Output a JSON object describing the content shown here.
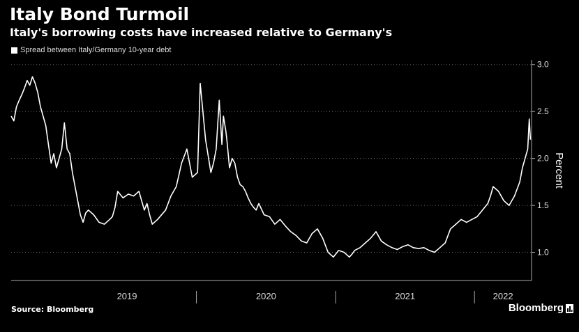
{
  "title": "Italy Bond Turmoil",
  "subtitle": "Italy's borrowing costs have increased relative to Germany's",
  "source": "Source: Bloomberg",
  "brand": "Bloomberg",
  "colors": {
    "background": "#000000",
    "line": "#ffffff",
    "grid": "#666666"
  },
  "chart_data": {
    "type": "line",
    "title": "Italy Bond Turmoil",
    "subtitle": "Italy's borrowing costs have increased relative to Germany's",
    "ylabel": "Percent",
    "xlabel": "",
    "ylim": [
      0.7,
      3.05
    ],
    "yticks": [
      1.0,
      1.5,
      2.0,
      2.5,
      3.0
    ],
    "ytick_labels": [
      "1.0",
      "1.5",
      "2.0",
      "2.5",
      "3.0"
    ],
    "xlim": [
      "2018-09-01",
      "2022-05-31"
    ],
    "xtick_labels": [
      "2019",
      "2020",
      "2021",
      "2022"
    ],
    "y_axis_position": "right",
    "grid": "horizontal dotted",
    "legend": "top-left",
    "series": [
      {
        "name": "Spread between Italy/Germany 10-year debt",
        "x": [
          "2018-09-01",
          "2018-09-08",
          "2018-09-15",
          "2018-09-22",
          "2018-09-29",
          "2018-10-06",
          "2018-10-13",
          "2018-10-20",
          "2018-10-27",
          "2018-11-03",
          "2018-11-10",
          "2018-11-17",
          "2018-11-24",
          "2018-12-01",
          "2018-12-08",
          "2018-12-15",
          "2018-12-22",
          "2018-12-29",
          "2019-01-05",
          "2019-01-12",
          "2019-01-19",
          "2019-01-26",
          "2019-02-02",
          "2019-02-09",
          "2019-02-16",
          "2019-02-23",
          "2019-03-02",
          "2019-03-09",
          "2019-03-16",
          "2019-03-23",
          "2019-04-06",
          "2019-04-20",
          "2019-05-04",
          "2019-05-18",
          "2019-05-25",
          "2019-06-01",
          "2019-06-08",
          "2019-06-22",
          "2019-07-06",
          "2019-07-20",
          "2019-08-03",
          "2019-08-10",
          "2019-08-17",
          "2019-08-24",
          "2019-08-31",
          "2019-09-07",
          "2019-09-21",
          "2019-10-12",
          "2019-10-26",
          "2019-11-09",
          "2019-11-23",
          "2019-12-07",
          "2019-12-21",
          "2020-01-04",
          "2020-01-11",
          "2020-01-25",
          "2020-02-08",
          "2020-02-15",
          "2020-02-22",
          "2020-03-01",
          "2020-03-08",
          "2020-03-12",
          "2020-03-18",
          "2020-03-21",
          "2020-03-28",
          "2020-04-04",
          "2020-04-11",
          "2020-04-18",
          "2020-04-25",
          "2020-05-02",
          "2020-05-09",
          "2020-05-16",
          "2020-05-23",
          "2020-05-30",
          "2020-06-06",
          "2020-06-13",
          "2020-06-27",
          "2020-07-11",
          "2020-07-25",
          "2020-08-08",
          "2020-08-22",
          "2020-09-05",
          "2020-09-19",
          "2020-10-03",
          "2020-10-17",
          "2020-10-31",
          "2020-11-14",
          "2020-11-28",
          "2020-12-12",
          "2020-12-26",
          "2021-01-09",
          "2021-01-23",
          "2021-02-06",
          "2021-02-13",
          "2021-02-20",
          "2021-03-06",
          "2021-03-20",
          "2021-04-03",
          "2021-04-17",
          "2021-05-01",
          "2021-05-15",
          "2021-05-29",
          "2021-06-12",
          "2021-06-26",
          "2021-07-10",
          "2021-07-24",
          "2021-08-07",
          "2021-08-21",
          "2021-09-04",
          "2021-09-18",
          "2021-10-02",
          "2021-10-16",
          "2021-10-30",
          "2021-11-13",
          "2021-11-27",
          "2021-12-11",
          "2021-12-25",
          "2022-01-08",
          "2022-01-22",
          "2022-02-05",
          "2022-02-12",
          "2022-02-19",
          "2022-03-05",
          "2022-03-19",
          "2022-04-02",
          "2022-04-16",
          "2022-04-30",
          "2022-05-07",
          "2022-05-14",
          "2022-05-21",
          "2022-05-25",
          "2022-05-28"
        ],
        "values": [
          2.45,
          2.4,
          2.55,
          2.62,
          2.68,
          2.75,
          2.83,
          2.78,
          2.87,
          2.8,
          2.7,
          2.55,
          2.45,
          2.35,
          2.15,
          1.95,
          2.05,
          1.9,
          2.0,
          2.1,
          2.38,
          2.1,
          2.05,
          1.85,
          1.7,
          1.55,
          1.4,
          1.32,
          1.42,
          1.45,
          1.4,
          1.32,
          1.3,
          1.35,
          1.38,
          1.48,
          1.65,
          1.58,
          1.62,
          1.6,
          1.65,
          1.55,
          1.45,
          1.52,
          1.4,
          1.3,
          1.35,
          1.45,
          1.6,
          1.7,
          1.95,
          2.1,
          1.8,
          1.85,
          2.8,
          2.2,
          1.85,
          1.95,
          2.1,
          2.62,
          2.15,
          2.45,
          2.3,
          2.2,
          1.9,
          2.0,
          1.95,
          1.8,
          1.72,
          1.7,
          1.65,
          1.58,
          1.52,
          1.48,
          1.45,
          1.52,
          1.4,
          1.38,
          1.3,
          1.35,
          1.28,
          1.22,
          1.18,
          1.12,
          1.1,
          1.2,
          1.25,
          1.15,
          1.0,
          0.95,
          1.02,
          1.0,
          0.95,
          0.98,
          1.02,
          1.05,
          1.1,
          1.15,
          1.22,
          1.12,
          1.08,
          1.05,
          1.03,
          1.06,
          1.08,
          1.05,
          1.04,
          1.05,
          1.02,
          1.0,
          1.05,
          1.1,
          1.25,
          1.3,
          1.35,
          1.32,
          1.35,
          1.38,
          1.45,
          1.52,
          1.6,
          1.7,
          1.65,
          1.55,
          1.5,
          1.6,
          1.75,
          1.9,
          2.0,
          2.1,
          2.42,
          2.2
        ]
      }
    ]
  }
}
